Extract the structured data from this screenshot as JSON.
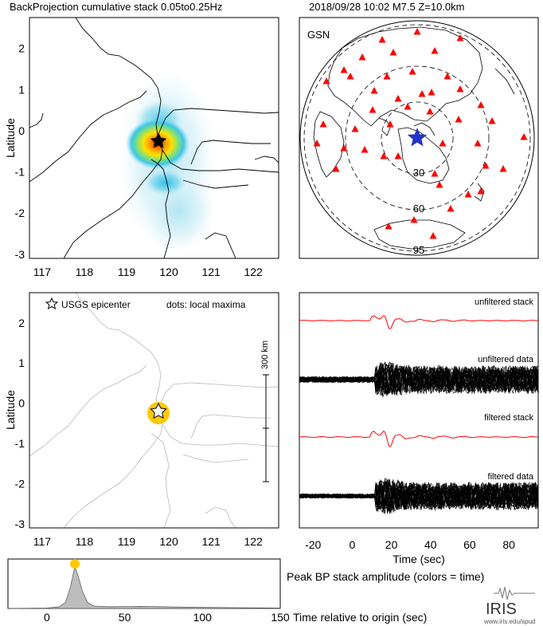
{
  "header": {
    "title_left": "BackProjection cumulative stack 0.05to0.25Hz",
    "title_right": "2018/09/28 10:02  M7.5  Z=10.0km"
  },
  "colors": {
    "frame": "#000000",
    "coast": "#000000",
    "coast_light": "#b8b8b8",
    "station": "#ff0000",
    "epicenter_star": "#2233cc",
    "stack_trace": "#ff0000",
    "data_trace": "#000000",
    "maxima": "#ffc800",
    "histogram_fill": "#bdbdbd"
  },
  "map_panel": {
    "ylabel": "Latitude",
    "xticks": [
      117,
      118,
      119,
      120,
      121,
      122
    ],
    "yticks": [
      2,
      1,
      0,
      -1,
      -2,
      -3
    ],
    "xlim": [
      116.7,
      122.6
    ],
    "ylim": [
      -3.1,
      2.75
    ]
  },
  "globe_panel": {
    "network_label": "GSN",
    "ring_labels": [
      "30",
      "60",
      "95"
    ]
  },
  "maxima_panel": {
    "epicenter_legend": "USGS epicenter",
    "maxima_legend": "dots: local maxima",
    "scale_label": "300 km",
    "ylabel": "Latitude",
    "xticks": [
      117,
      118,
      119,
      120,
      121,
      122
    ],
    "yticks": [
      2,
      1,
      0,
      -1,
      -2,
      -3
    ]
  },
  "traces_panel": {
    "labels": [
      "unfiltered stack",
      "unfiltered data",
      "filtered stack",
      "filtered data"
    ],
    "xticks": [
      -20,
      0,
      20,
      40,
      60,
      80
    ],
    "xlabel": "Time (sec)",
    "xlim": [
      -27,
      95
    ]
  },
  "amplitude_panel": {
    "xticks": [
      0,
      50,
      100,
      150
    ],
    "caption_top": "Peak BP stack amplitude (colors = time)",
    "caption_bottom": "Time relative to origin (sec)",
    "xlim": [
      -25,
      150
    ]
  },
  "logo": {
    "name": "IRIS",
    "url": "www.iris.edu/spud"
  },
  "chart_data": [
    {
      "type": "heatmap",
      "title": "BackProjection cumulative stack 0.05to0.25Hz",
      "ylabel": "Latitude",
      "xlim": [
        116.7,
        122.6
      ],
      "ylim": [
        -3.1,
        2.75
      ],
      "epicenter": {
        "lon": 119.84,
        "lat": -0.18
      },
      "energy_blobs": [
        {
          "lon": 119.8,
          "lat": -0.2,
          "strength": 1.0
        },
        {
          "lon": 120.05,
          "lat": -1.2,
          "strength": 0.45
        },
        {
          "lon": 119.6,
          "lat": 0.6,
          "strength": 0.3
        },
        {
          "lon": 119.8,
          "lat": -2.2,
          "strength": 0.2
        }
      ]
    },
    {
      "type": "scatter",
      "title": "GSN",
      "station_count": 50,
      "ring_distances_deg": [
        30,
        60,
        95
      ]
    },
    {
      "type": "scatter",
      "ylabel": "Latitude",
      "local_maxima": [
        {
          "lon": 119.84,
          "lat": -0.25
        }
      ],
      "epicenter": {
        "lon": 119.84,
        "lat": -0.18
      }
    },
    {
      "type": "line",
      "xlabel": "Time (sec)",
      "xlim": [
        -27,
        95
      ],
      "series": [
        {
          "name": "unfiltered stack"
        },
        {
          "name": "unfiltered data"
        },
        {
          "name": "filtered stack"
        },
        {
          "name": "filtered data"
        }
      ]
    },
    {
      "type": "area",
      "xlabel": "Time relative to origin (sec)",
      "xlim": [
        -25,
        150
      ],
      "peak_time": 18,
      "x": [
        -25,
        0,
        8,
        12,
        15,
        17,
        18,
        20,
        23,
        26,
        30,
        40,
        60,
        90,
        120,
        150
      ],
      "values": [
        0,
        0.01,
        0.04,
        0.15,
        0.5,
        0.85,
        1.0,
        0.8,
        0.4,
        0.15,
        0.06,
        0.04,
        0.05,
        0.03,
        0.02,
        0.01
      ]
    }
  ]
}
